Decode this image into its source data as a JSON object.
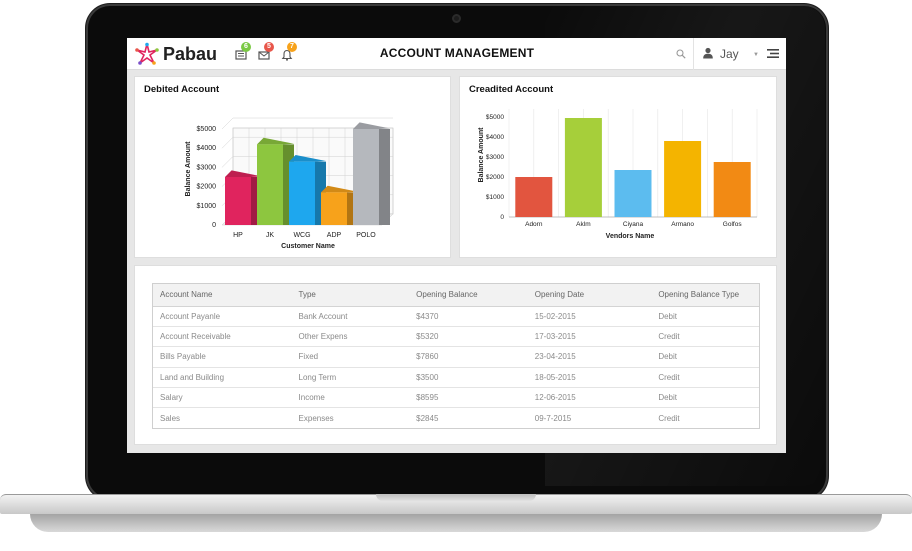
{
  "app": {
    "brand": "Pabau",
    "page_title": "ACCOUNT MANAGEMENT",
    "user_name": "Jay",
    "notifications": [
      {
        "icon": "list-icon",
        "count": "6",
        "color": "#7ac943"
      },
      {
        "icon": "mail-icon",
        "count": "5",
        "color": "#e8564a"
      },
      {
        "icon": "bell-icon",
        "count": "7",
        "color": "#f7a21b"
      }
    ]
  },
  "debited": {
    "title": "Debited Account",
    "chart_data": {
      "type": "bar",
      "style": "3d",
      "categories": [
        "HP",
        "JK",
        "WCG",
        "ADP",
        "POLO"
      ],
      "values": [
        2500,
        4200,
        3300,
        1700,
        5000
      ],
      "colors": [
        "#e0245e",
        "#8dc63f",
        "#1ea7ee",
        "#f7a21b",
        "#b5b8bd"
      ],
      "xlabel": "Customer Name",
      "ylabel": "Balance Amount",
      "yticks": [
        "0",
        "$1000",
        "$2000",
        "$3000",
        "$4000",
        "$5000"
      ],
      "ylim": [
        0,
        5000
      ],
      "grid": true
    }
  },
  "credited": {
    "title": "Creadited Account",
    "chart_data": {
      "type": "bar",
      "categories": [
        "Adorn",
        "Aklm",
        "Ciyana",
        "Armano",
        "Golfos"
      ],
      "values": [
        2000,
        4950,
        2350,
        3800,
        2750
      ],
      "colors": [
        "#e2553f",
        "#a6cf3a",
        "#5cbcef",
        "#f4b400",
        "#f28a14"
      ],
      "xlabel": "Vendors Name",
      "ylabel": "Balance Amount",
      "yticks": [
        "0",
        "$1000",
        "$2000",
        "$3000",
        "$4000",
        "$5000"
      ],
      "ylim": [
        0,
        5000
      ],
      "grid": true
    }
  },
  "table": {
    "columns": [
      "Account Name",
      "Type",
      "Opening Balance",
      "Opening Date",
      "Opening Balance Type"
    ],
    "rows": [
      [
        "Account Payanle",
        "Bank Account",
        "$4370",
        "15-02-2015",
        "Debit"
      ],
      [
        "Account Receivable",
        "Other Expens",
        "$5320",
        "17-03-2015",
        "Credit"
      ],
      [
        "Bills Payable",
        "Fixed",
        "$7860",
        "23-04-2015",
        "Debit"
      ],
      [
        "Land and Building",
        "Long Term",
        "$3500",
        "18-05-2015",
        "Credit"
      ],
      [
        "Salary",
        "Income",
        "$8595",
        "12-06-2015",
        "Debit"
      ],
      [
        "Sales",
        "Expenses",
        "$2845",
        "09-7-2015",
        "Credit"
      ]
    ]
  }
}
